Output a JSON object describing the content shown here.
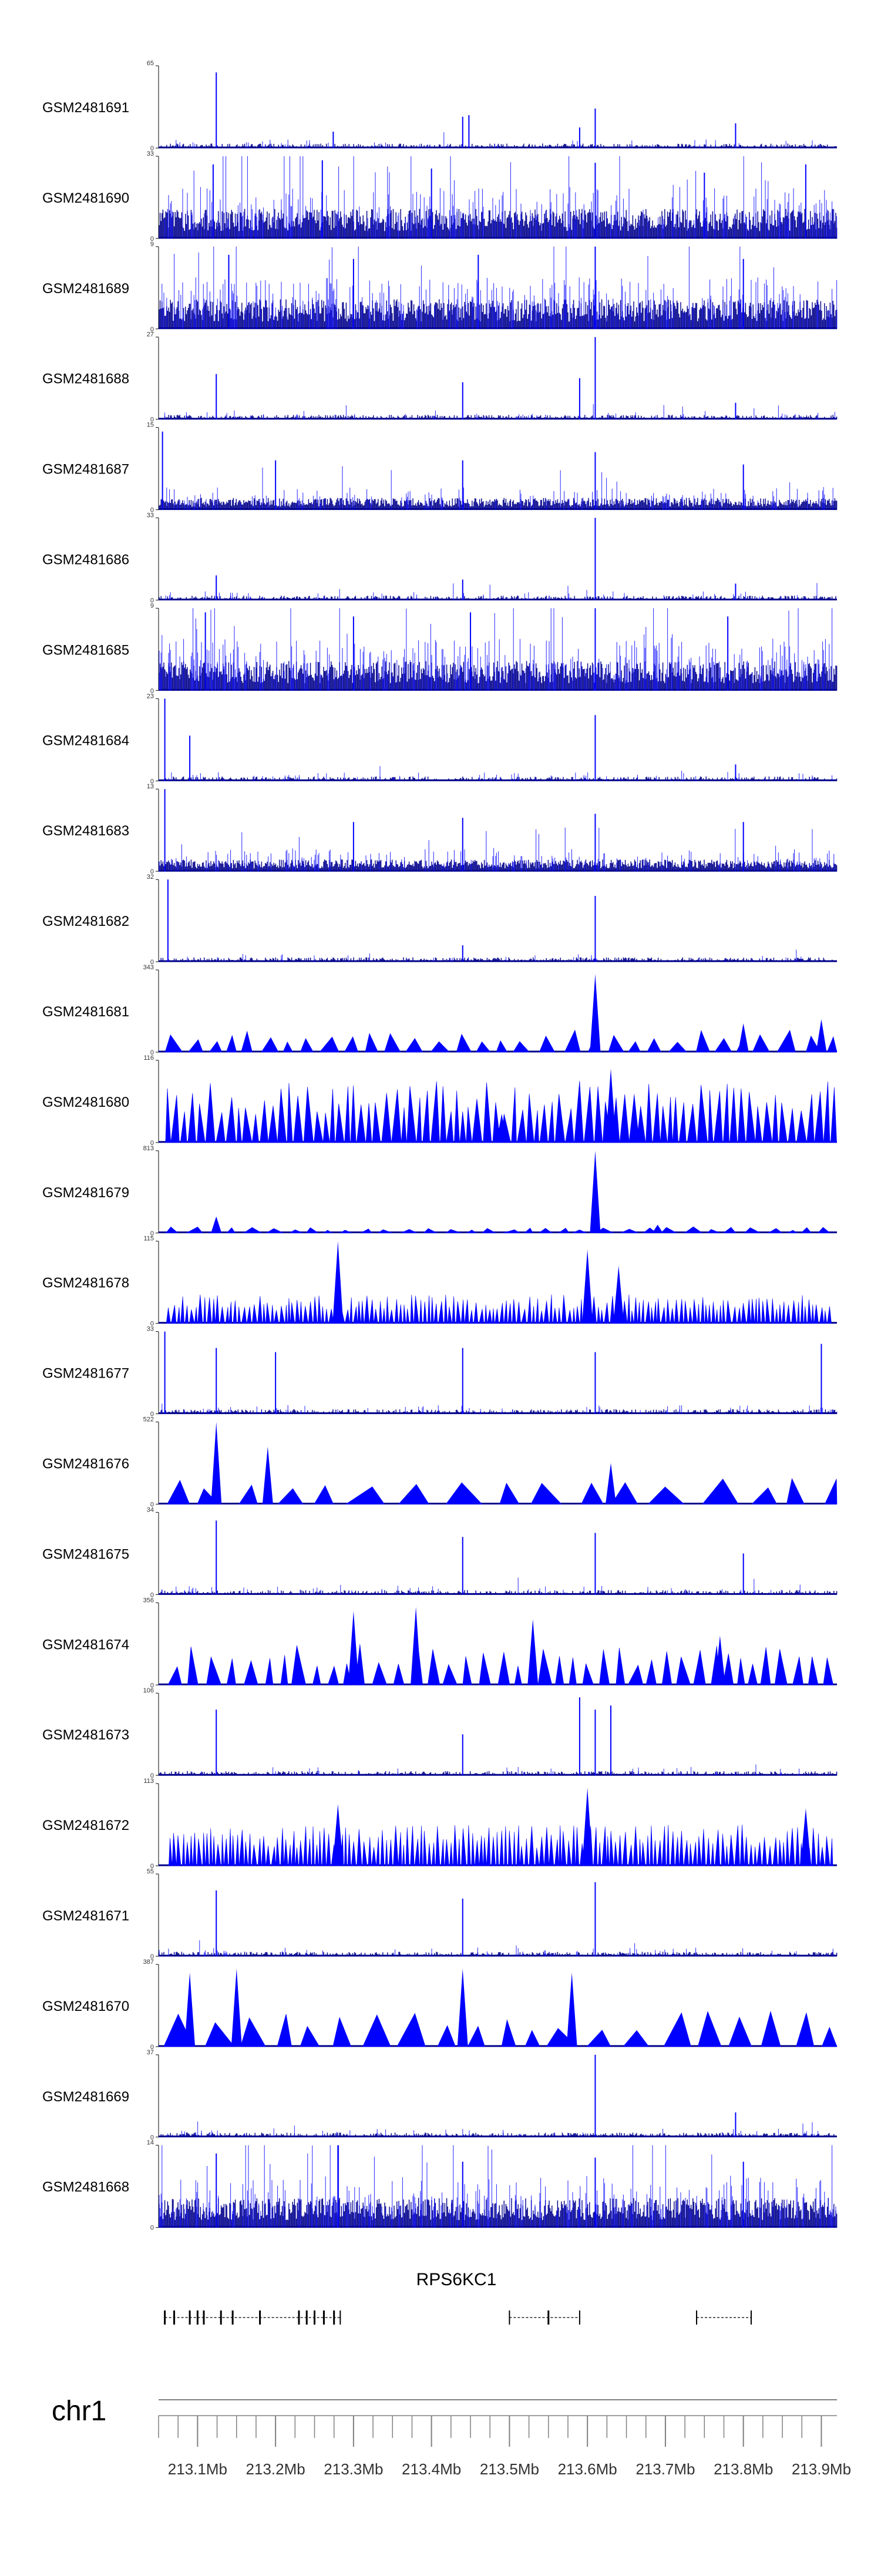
{
  "chart_data": {
    "type": "genome-browser-tracks",
    "chromosome": "chr1",
    "x_range_mb": [
      213.05,
      213.92
    ],
    "colors": {
      "signal": "#0000ff",
      "dense": "#00008b",
      "axis": "#808080",
      "gene": "#000000"
    },
    "tracks": [
      {
        "name": "GSM2481691",
        "ymax": "65",
        "style": "sparse",
        "density": 0.05,
        "peaks": [
          [
            213.124,
            0.92
          ],
          [
            213.274,
            0.2
          ],
          [
            213.44,
            0.38
          ],
          [
            213.448,
            0.4
          ],
          [
            213.59,
            0.25
          ],
          [
            213.61,
            0.48
          ],
          [
            213.79,
            0.3
          ]
        ]
      },
      {
        "name": "GSM2481690",
        "ymax": "33",
        "style": "dense",
        "density": 0.33,
        "peaks": [
          [
            213.12,
            0.9
          ],
          [
            213.26,
            0.95
          ],
          [
            213.4,
            0.85
          ],
          [
            213.61,
            0.92
          ],
          [
            213.75,
            0.8
          ],
          [
            213.88,
            0.9
          ]
        ]
      },
      {
        "name": "GSM2481689",
        "ymax": "9",
        "style": "dense",
        "density": 0.33,
        "peaks": [
          [
            213.14,
            0.9
          ],
          [
            213.3,
            0.85
          ],
          [
            213.46,
            0.9
          ],
          [
            213.61,
            1.0
          ],
          [
            213.8,
            0.85
          ]
        ]
      },
      {
        "name": "GSM2481688",
        "ymax": "27",
        "style": "sparse",
        "density": 0.08,
        "peaks": [
          [
            213.124,
            0.55
          ],
          [
            213.44,
            0.45
          ],
          [
            213.59,
            0.5
          ],
          [
            213.61,
            1.0
          ],
          [
            213.79,
            0.2
          ]
        ]
      },
      {
        "name": "GSM2481687",
        "ymax": "15",
        "style": "mixed",
        "density": 0.18,
        "peaks": [
          [
            213.055,
            0.95
          ],
          [
            213.2,
            0.6
          ],
          [
            213.44,
            0.6
          ],
          [
            213.61,
            0.7
          ],
          [
            213.8,
            0.55
          ]
        ]
      },
      {
        "name": "GSM2481686",
        "ymax": "33",
        "style": "sparse",
        "density": 0.06,
        "peaks": [
          [
            213.124,
            0.3
          ],
          [
            213.44,
            0.25
          ],
          [
            213.61,
            1.0
          ],
          [
            213.79,
            0.2
          ]
        ]
      },
      {
        "name": "GSM2481685",
        "ymax": "9",
        "style": "dense",
        "density": 0.36,
        "peaks": [
          [
            213.11,
            0.95
          ],
          [
            213.3,
            0.9
          ],
          [
            213.45,
            0.95
          ],
          [
            213.61,
            1.0
          ],
          [
            213.78,
            0.9
          ]
        ]
      },
      {
        "name": "GSM2481684",
        "ymax": "23",
        "style": "sparse",
        "density": 0.05,
        "peaks": [
          [
            213.058,
            1.0
          ],
          [
            213.09,
            0.55
          ],
          [
            213.61,
            0.8
          ],
          [
            213.79,
            0.2
          ]
        ]
      },
      {
        "name": "GSM2481683",
        "ymax": "13",
        "style": "mixed",
        "density": 0.2,
        "peaks": [
          [
            213.058,
            1.0
          ],
          [
            213.3,
            0.6
          ],
          [
            213.44,
            0.65
          ],
          [
            213.61,
            0.7
          ],
          [
            213.8,
            0.6
          ]
        ]
      },
      {
        "name": "GSM2481682",
        "ymax": "32",
        "style": "sparse",
        "density": 0.05,
        "peaks": [
          [
            213.062,
            1.0
          ],
          [
            213.44,
            0.2
          ],
          [
            213.61,
            0.8
          ]
        ]
      },
      {
        "name": "GSM2481681",
        "ymax": "343",
        "style": "tri",
        "tri_h": 0.22,
        "spacing": 15,
        "peaks": [
          [
            213.61,
            0.95
          ],
          [
            213.8,
            0.35
          ],
          [
            213.9,
            0.4
          ]
        ]
      },
      {
        "name": "GSM2481680",
        "ymax": "116",
        "style": "tri",
        "tri_h": 0.6,
        "spacing": 8,
        "peaks": [
          [
            213.49,
            0.35
          ],
          [
            213.63,
            0.9
          ],
          [
            213.66,
            0.6
          ]
        ]
      },
      {
        "name": "GSM2481679",
        "ymax": "813",
        "style": "tri",
        "tri_h": 0.06,
        "spacing": 14,
        "peaks": [
          [
            213.124,
            0.2
          ],
          [
            213.61,
            1.0
          ],
          [
            213.69,
            0.1
          ]
        ]
      },
      {
        "name": "GSM2481678",
        "ymax": "115",
        "style": "tri",
        "tri_h": 0.28,
        "spacing": 4,
        "peaks": [
          [
            213.28,
            1.0
          ],
          [
            213.6,
            0.9
          ],
          [
            213.64,
            0.7
          ]
        ]
      },
      {
        "name": "GSM2481677",
        "ymax": "33",
        "style": "sparse",
        "density": 0.06,
        "peaks": [
          [
            213.058,
            1.0
          ],
          [
            213.124,
            0.8
          ],
          [
            213.2,
            0.75
          ],
          [
            213.44,
            0.8
          ],
          [
            213.61,
            0.75
          ],
          [
            213.9,
            0.85
          ]
        ]
      },
      {
        "name": "GSM2481676",
        "ymax": "522",
        "style": "tri",
        "tri_h": 0.3,
        "spacing": 30,
        "peaks": [
          [
            213.124,
            1.0
          ],
          [
            213.19,
            0.7
          ],
          [
            213.63,
            0.5
          ]
        ]
      },
      {
        "name": "GSM2481675",
        "ymax": "34",
        "style": "sparse",
        "density": 0.07,
        "peaks": [
          [
            213.124,
            0.9
          ],
          [
            213.44,
            0.7
          ],
          [
            213.61,
            0.75
          ],
          [
            213.8,
            0.5
          ]
        ]
      },
      {
        "name": "GSM2481674",
        "ymax": "356",
        "style": "tri",
        "tri_h": 0.4,
        "spacing": 12,
        "peaks": [
          [
            213.3,
            0.9
          ],
          [
            213.38,
            0.95
          ],
          [
            213.53,
            0.8
          ],
          [
            213.77,
            0.6
          ]
        ]
      },
      {
        "name": "GSM2481673",
        "ymax": "106",
        "style": "sparse",
        "density": 0.04,
        "peaks": [
          [
            213.124,
            0.8
          ],
          [
            213.44,
            0.5
          ],
          [
            213.59,
            0.95
          ],
          [
            213.61,
            0.8
          ],
          [
            213.63,
            0.85
          ]
        ]
      },
      {
        "name": "GSM2481672",
        "ymax": "113",
        "style": "tri",
        "tri_h": 0.4,
        "spacing": 4,
        "peaks": [
          [
            213.28,
            0.75
          ],
          [
            213.6,
            0.95
          ],
          [
            213.88,
            0.7
          ]
        ]
      },
      {
        "name": "GSM2481671",
        "ymax": "55",
        "style": "sparse",
        "density": 0.07,
        "peaks": [
          [
            213.124,
            0.8
          ],
          [
            213.44,
            0.7
          ],
          [
            213.61,
            0.9
          ]
        ]
      },
      {
        "name": "GSM2481670",
        "ymax": "387",
        "style": "tri",
        "tri_h": 0.35,
        "spacing": 24,
        "peaks": [
          [
            213.09,
            0.9
          ],
          [
            213.15,
            0.95
          ],
          [
            213.44,
            0.95
          ],
          [
            213.58,
            0.9
          ]
        ]
      },
      {
        "name": "GSM2481669",
        "ymax": "37",
        "style": "sparse",
        "density": 0.05,
        "peaks": [
          [
            213.61,
            1.0
          ],
          [
            213.79,
            0.3
          ]
        ]
      },
      {
        "name": "GSM2481668",
        "ymax": "14",
        "style": "dense",
        "density": 0.3,
        "peaks": [
          [
            213.124,
            0.9
          ],
          [
            213.28,
            1.0
          ],
          [
            213.44,
            0.8
          ],
          [
            213.61,
            0.85
          ],
          [
            213.8,
            0.8
          ]
        ]
      }
    ],
    "genes": {
      "label": "RPS6KC1",
      "transcripts": [
        {
          "start": 213.058,
          "end": 213.283,
          "exons": [
            213.058,
            213.07,
            213.09,
            213.1,
            213.108,
            213.13,
            213.145,
            213.18,
            213.23,
            213.24,
            213.25,
            213.262,
            213.275
          ]
        },
        {
          "start": 213.5,
          "end": 213.59,
          "exons": [
            213.55
          ]
        },
        {
          "start": 213.74,
          "end": 213.81,
          "exons": []
        }
      ]
    },
    "axis": {
      "ticks": [
        "213.1Mb",
        "213.2Mb",
        "213.3Mb",
        "213.4Mb",
        "213.5Mb",
        "213.6Mb",
        "213.7Mb",
        "213.8Mb",
        "213.9Mb"
      ],
      "tick_values": [
        213.1,
        213.2,
        213.3,
        213.4,
        213.5,
        213.6,
        213.7,
        213.8,
        213.9
      ],
      "minor_step": 0.025
    }
  }
}
